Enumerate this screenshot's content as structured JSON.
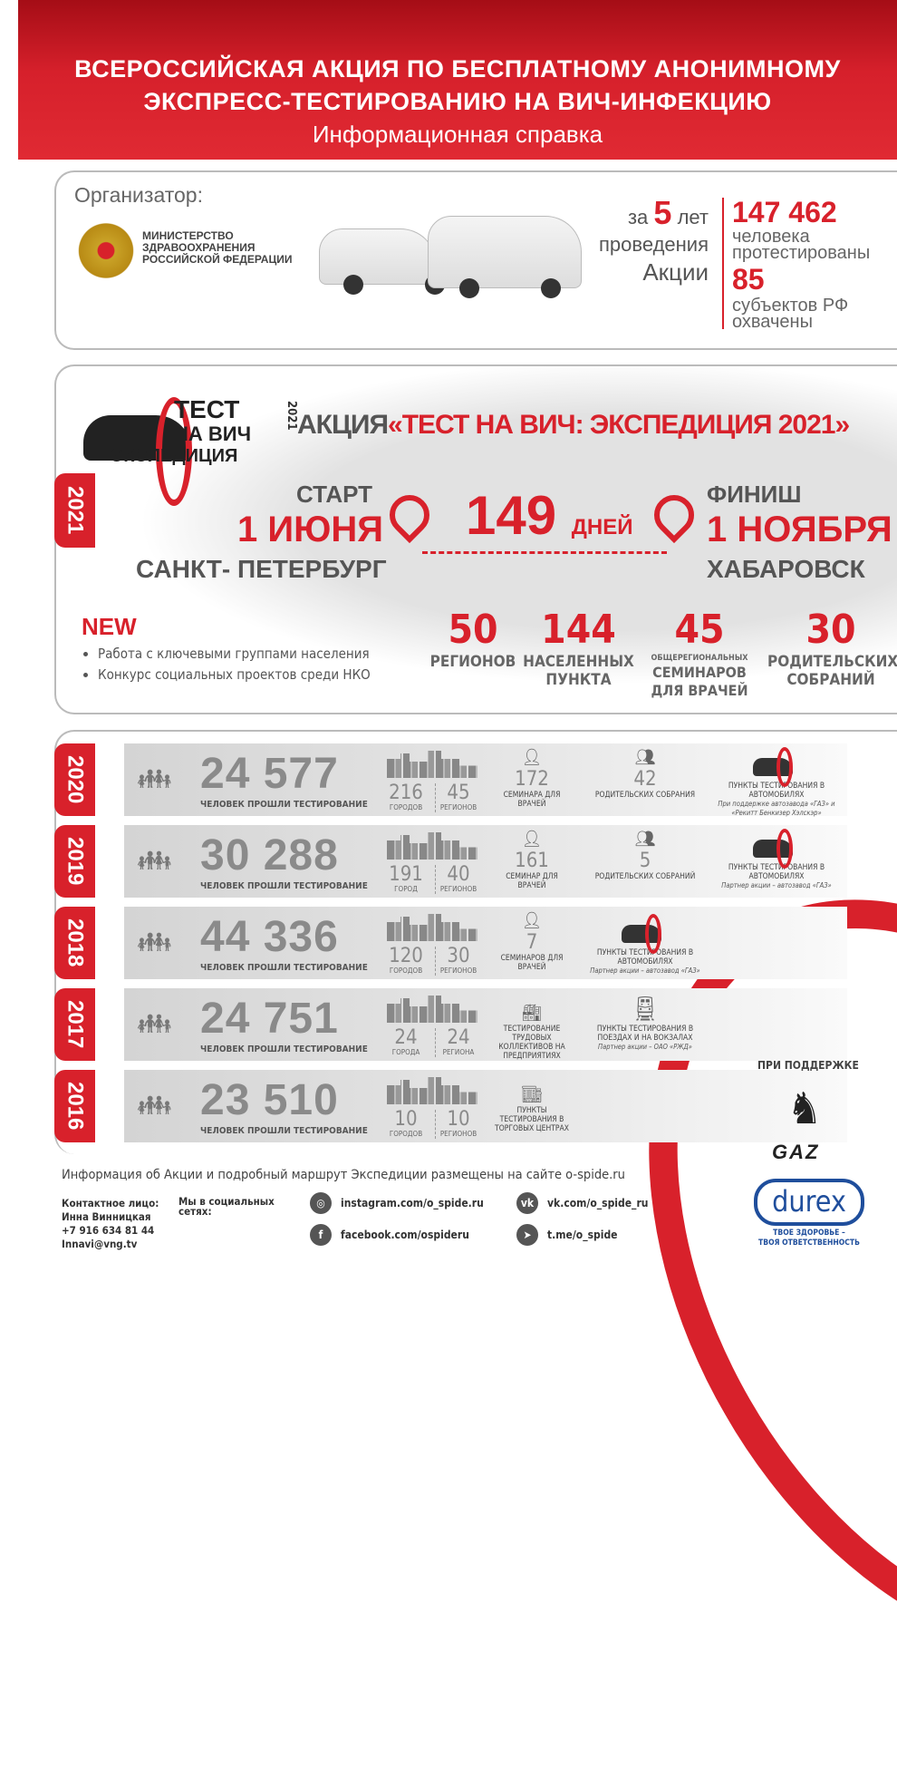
{
  "header": {
    "title_line1": "ВСЕРОССИЙСКАЯ АКЦИЯ ПО БЕСПЛАТНОМУ АНОНИМНОМУ",
    "title_line2": "ЭКСПРЕСС-ТЕСТИРОВАНИЮ НА ВИЧ-ИНФЕКЦИЮ",
    "subtitle": "Информационная справка"
  },
  "organizer": {
    "label": "Организатор:",
    "ministry": [
      "МИНИСТЕРСТВО",
      "ЗДРАВООХРАНЕНИЯ",
      "РОССИЙСКОЙ ФЕДЕРАЦИИ"
    ],
    "za": "за",
    "years": "5",
    "let": "лет",
    "provedeniya": "проведения",
    "akcii": "Акции",
    "tested_num": "147 462",
    "tested_l1": "человека",
    "tested_l2": "протестированы",
    "regions_num": "85",
    "regions_l1": "субъектов РФ",
    "regions_l2": "охвачены"
  },
  "expedition": {
    "year_tab": "2021",
    "logo_text": [
      "ТЕСТ",
      "НА ВИЧ",
      "ЭКСПЕДИЦИЯ"
    ],
    "logo_year": "2021",
    "title_prefix": "АКЦИЯ",
    "title": "«ТЕСТ НА ВИЧ: ЭКСПЕДИЦИЯ 2021»",
    "start_label": "СТАРТ",
    "start_date": "1 ИЮНЯ",
    "start_city": "САНКТ- ПЕТЕРБУРГ",
    "days_num": "149",
    "days_label": "ДНЕЙ",
    "finish_label": "ФИНИШ",
    "finish_date": "1 НОЯБРЯ",
    "finish_city": "ХАБАРОВСК",
    "new_label": "NEW",
    "new_items": [
      "Работа с ключевыми группами населения",
      "Конкурс социальных проектов среди НКО"
    ],
    "stats": [
      {
        "num": "50",
        "l1": "РЕГИОНОВ",
        "l2": ""
      },
      {
        "num": "144",
        "l1": "НАСЕЛЕННЫХ",
        "l2": "ПУНКТА"
      },
      {
        "num": "45",
        "pre": "ОБЩЕРЕГИОНАЛЬНЫХ",
        "l1": "СЕМИНАРОВ",
        "l2": "ДЛЯ ВРАЧЕЙ"
      },
      {
        "num": "30",
        "l1": "РОДИТЕЛЬСКИХ",
        "l2": "СОБРАНИЙ"
      }
    ]
  },
  "years": [
    {
      "year": "2020",
      "tested": "24 577",
      "tested_label": "ЧЕЛОВЕК ПРОШЛИ ТЕСТИРОВАНИЕ",
      "cities": "216",
      "cities_label": "ГОРОДОВ",
      "regions": "45",
      "regions_label": "РЕГИОНОВ",
      "c3_num": "172",
      "c3_text": "СЕМИНАРА ДЛЯ ВРАЧЕЙ",
      "c4_num": "42",
      "c4_text": "РОДИТЕЛЬСКИХ СОБРАНИЯ",
      "c5_text": "ПУНКТЫ ТЕСТИРОВАНИЯ В АВТОМОБИЛЯХ",
      "c5_note": "При поддержке автозавода «ГАЗ» и «Рекитт Бенкизер Хэлскэр»"
    },
    {
      "year": "2019",
      "tested": "30 288",
      "tested_label": "ЧЕЛОВЕК ПРОШЛИ ТЕСТИРОВАНИЕ",
      "cities": "191",
      "cities_label": "ГОРОД",
      "regions": "40",
      "regions_label": "РЕГИОНОВ",
      "c3_num": "161",
      "c3_text": "СЕМИНАР ДЛЯ ВРАЧЕЙ",
      "c4_num": "5",
      "c4_text": "РОДИТЕЛЬСКИХ СОБРАНИЙ",
      "c5_text": "ПУНКТЫ ТЕСТИРОВАНИЯ В АВТОМОБИЛЯХ",
      "c5_note": "Партнер акции – автозавод «ГАЗ»"
    },
    {
      "year": "2018",
      "tested": "44 336",
      "tested_label": "ЧЕЛОВЕК ПРОШЛИ ТЕСТИРОВАНИЕ",
      "cities": "120",
      "cities_label": "ГОРОДОВ",
      "regions": "30",
      "regions_label": "РЕГИОНОВ",
      "c3_num": "7",
      "c3_text": "СЕМИНАРОВ ДЛЯ ВРАЧЕЙ",
      "c4_text": "ПУНКТЫ ТЕСТИРОВАНИЯ В АВТОМОБИЛЯХ",
      "c4_note": "Партнер акции – автозавод «ГАЗ»"
    },
    {
      "year": "2017",
      "tested": "24 751",
      "tested_label": "ЧЕЛОВЕК ПРОШЛИ ТЕСТИРОВАНИЕ",
      "cities": "24",
      "cities_label": "ГОРОДА",
      "regions": "24",
      "regions_label": "РЕГИОНА",
      "c3_text": "ТЕСТИРОВАНИЕ ТРУДОВЫХ КОЛЛЕКТИВОВ НА ПРЕДПРИЯТИЯХ",
      "c4_text": "ПУНКТЫ ТЕСТИРОВАНИЯ В ПОЕЗДАХ И НА ВОКЗАЛАХ",
      "c4_note": "Партнер акции – ОАО «РЖД»"
    },
    {
      "year": "2016",
      "tested": "23 510",
      "tested_label": "ЧЕЛОВЕК ПРОШЛИ ТЕСТИРОВАНИЕ",
      "cities": "10",
      "cities_label": "ГОРОДОВ",
      "regions": "10",
      "regions_label": "РЕГИОНОВ",
      "c3_text": "ПУНКТЫ ТЕСТИРОВАНИЯ В ТОРГОВЫХ ЦЕНТРАХ"
    }
  ],
  "footer": {
    "info": "Информация об Акции и подробный маршрут Экспедиции размещены на сайте o-spide.ru",
    "contact_label": "Контактное лицо:",
    "contact_name": "Инна Винницкая",
    "contact_phone": "+7 916 634 81 44",
    "contact_email": "Innavi@vng.tv",
    "social_label": "Мы в социальных сетях:",
    "instagram": "instagram.com/o_spide.ru",
    "vk": "vk.com/o_spide_ru",
    "facebook": "facebook.com/ospideru",
    "telegram": "t.me/o_spide",
    "support_label": "ПРИ ПОДДЕРЖКЕ",
    "gaz": "GAZ",
    "durex": "durex",
    "durex_slogan1": "ТВОЕ ЗДОРОВЬЕ –",
    "durex_slogan2": "ТВОЯ ОТВЕТСТВЕННОСТЬ"
  },
  "colors": {
    "accent": "#d8212b",
    "gray_text": "#8a8a8a",
    "durex_blue": "#1f4e9c"
  }
}
